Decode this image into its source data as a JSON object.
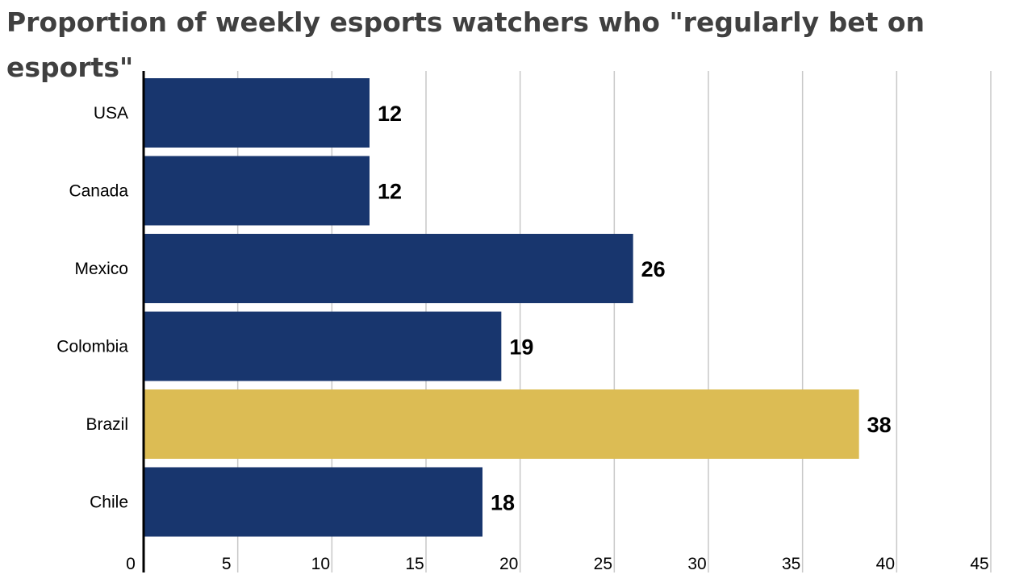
{
  "chart_data": {
    "type": "bar",
    "orientation": "horizontal",
    "title": "Proportion of weekly esports watchers who \"regularly bet on esports\"",
    "categories": [
      "USA",
      "Canada",
      "Mexico",
      "Colombia",
      "Brazil",
      "Chile"
    ],
    "values": [
      12,
      12,
      26,
      19,
      38,
      18
    ],
    "value_labels": [
      "12",
      "12",
      "26",
      "19",
      "38",
      "18"
    ],
    "highlight_category": "Brazil",
    "xlim": [
      0,
      45
    ],
    "xticks": [
      0,
      5,
      10,
      15,
      20,
      25,
      30,
      35,
      40,
      45
    ],
    "xtick_labels": [
      "0",
      "5",
      "10",
      "15",
      "20",
      "25",
      "30",
      "35",
      "40",
      "45"
    ],
    "xlabel": "",
    "ylabel": "",
    "grid": true,
    "legend": "none",
    "colors": {
      "bar": "#18366e",
      "highlight": "#dcbc54",
      "grid": "#c8c8c8",
      "axis": "#000000",
      "title": "#404040"
    }
  }
}
